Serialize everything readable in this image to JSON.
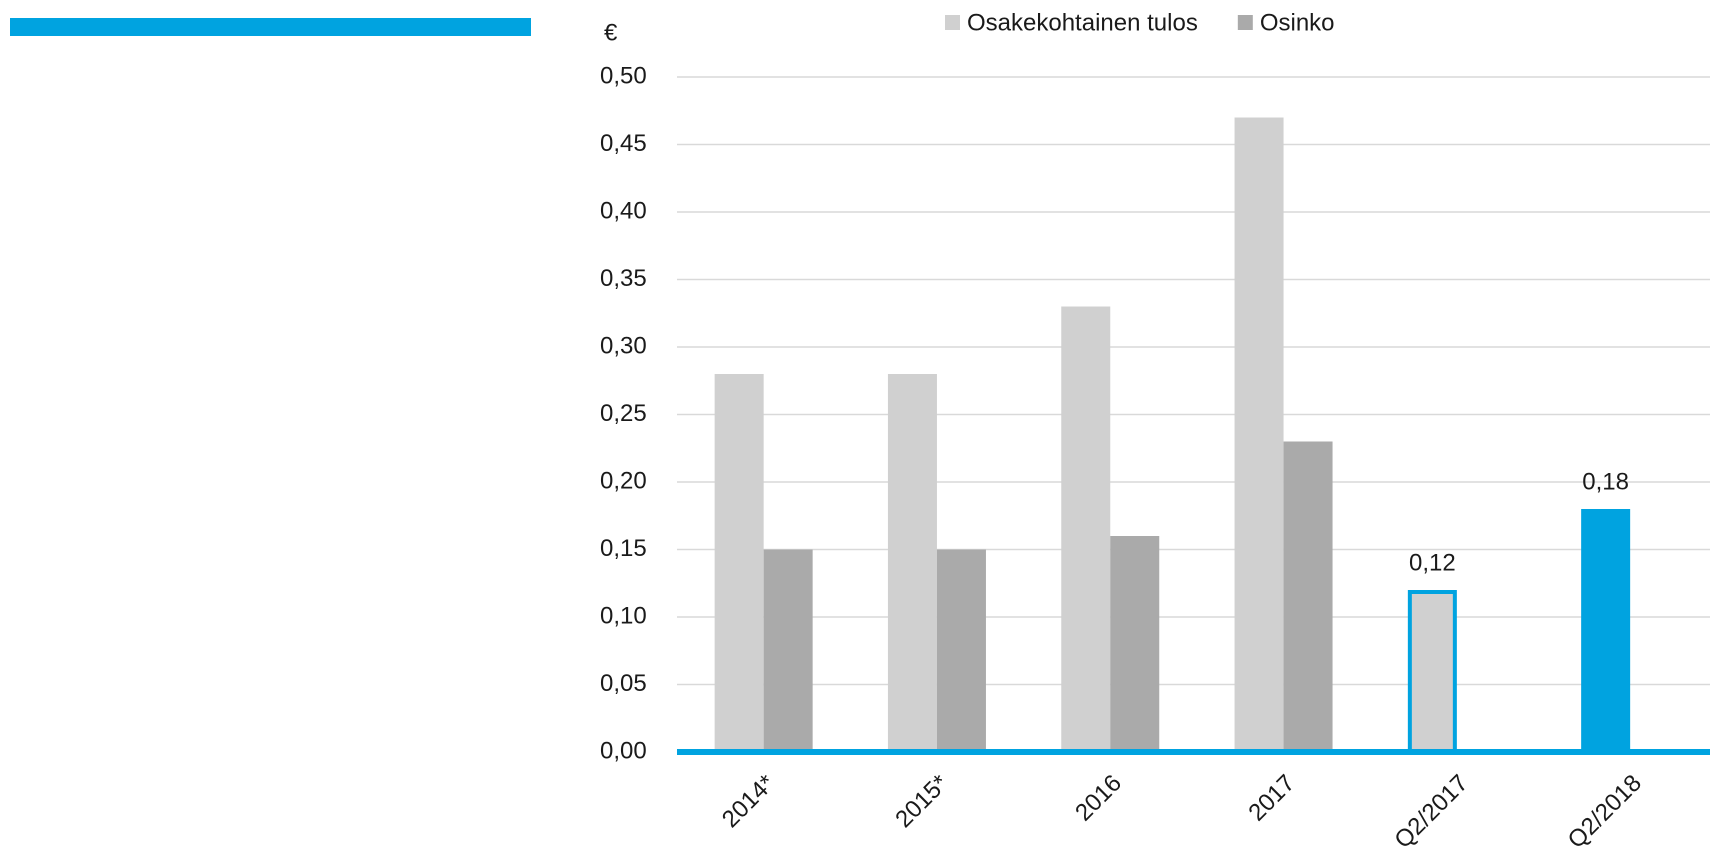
{
  "chart_data": {
    "type": "bar",
    "y_label": "€",
    "categories": [
      "2014*",
      "2015*",
      "2016",
      "2017",
      "Q2/2017",
      "Q2/2018"
    ],
    "series": [
      {
        "name": "Osakekohtainen tulos",
        "color": "#d0d0d0",
        "values": [
          0.28,
          0.28,
          0.33,
          0.47,
          0.12,
          0.18
        ],
        "point_colors": [
          "#d0d0d0",
          "#d0d0d0",
          "#d0d0d0",
          "#d0d0d0",
          "#d0d0d0",
          "#00a3e0"
        ],
        "point_outlines": [
          null,
          null,
          null,
          null,
          "#00a3e0",
          null
        ],
        "value_labels": [
          null,
          null,
          null,
          null,
          "0,12",
          "0,18"
        ]
      },
      {
        "name": "Osinko",
        "color": "#aaaaaa",
        "values": [
          0.15,
          0.15,
          0.16,
          0.23,
          null,
          null
        ]
      }
    ],
    "ylim": [
      0,
      0.5
    ],
    "yticks": [
      {
        "value": 0,
        "label": "0,00"
      },
      {
        "value": 0.05,
        "label": "0,05"
      },
      {
        "value": 0.1,
        "label": "0,10"
      },
      {
        "value": 0.15,
        "label": "0,15"
      },
      {
        "value": 0.2,
        "label": "0,20"
      },
      {
        "value": 0.25,
        "label": "0,25"
      },
      {
        "value": 0.3,
        "label": "0,30"
      },
      {
        "value": 0.35,
        "label": "0,35"
      },
      {
        "value": 0.4,
        "label": "0,40"
      },
      {
        "value": 0.45,
        "label": "0,45"
      },
      {
        "value": 0.5,
        "label": "0,50"
      }
    ],
    "grid": true,
    "axis_color": "#00a3e0",
    "legend": "top"
  }
}
